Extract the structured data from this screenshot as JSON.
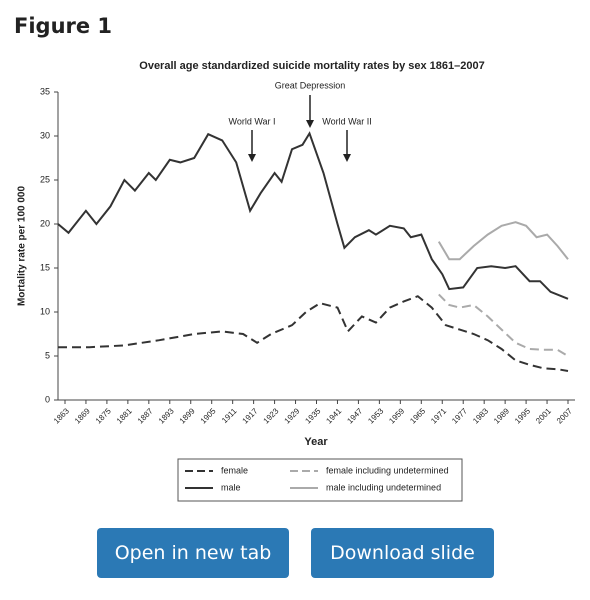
{
  "header": {
    "title": "Figure 1"
  },
  "chart_data": {
    "type": "line",
    "title": "Overall age standardized suicide mortality rates by sex 1861–2007",
    "x_label": "Year",
    "y_label": "Mortality rate per 100 000",
    "annotations": [
      "Great Depression",
      "World War I",
      "World War II"
    ],
    "xlim": [
      1861,
      2009
    ],
    "xticks": [
      1863,
      1869,
      1875,
      1881,
      1887,
      1893,
      1899,
      1905,
      1911,
      1917,
      1923,
      1929,
      1935,
      1941,
      1947,
      1953,
      1959,
      1965,
      1971,
      1977,
      1983,
      1989,
      1995,
      2001,
      2007
    ],
    "ylim": [
      0,
      35
    ],
    "yticks": [
      0,
      5,
      10,
      15,
      20,
      25,
      30,
      35
    ],
    "grid": false,
    "series": [
      {
        "name": "female",
        "color": "#333333",
        "dashed": true,
        "x": [
          1861,
          1870,
          1880,
          1890,
          1900,
          1908,
          1914,
          1918,
          1922,
          1928,
          1932,
          1936,
          1941,
          1944,
          1948,
          1952,
          1956,
          1960,
          1964,
          1968,
          1972,
          1976,
          1980,
          1984,
          1988,
          1992,
          1996,
          2000,
          2004,
          2007
        ],
        "values": [
          6,
          6,
          6.2,
          6.8,
          7.5,
          7.8,
          7.5,
          6.5,
          7.5,
          8.5,
          10,
          11,
          10.5,
          7.8,
          9.5,
          8.8,
          10.5,
          11.2,
          11.8,
          10.5,
          8.5,
          8,
          7.5,
          6.8,
          5.8,
          4.5,
          4,
          3.6,
          3.5,
          3.3
        ]
      },
      {
        "name": "female including undetermined",
        "color": "#aaaaaa",
        "dashed": true,
        "x": [
          1970,
          1973,
          1976,
          1980,
          1984,
          1988,
          1992,
          1996,
          2000,
          2004,
          2007
        ],
        "values": [
          12,
          10.8,
          10.5,
          10.8,
          9.5,
          8,
          6.5,
          5.8,
          5.7,
          5.7,
          5
        ]
      },
      {
        "name": "male",
        "color": "#333333",
        "dashed": false,
        "x": [
          1861,
          1864,
          1869,
          1872,
          1876,
          1880,
          1883,
          1887,
          1889,
          1893,
          1896,
          1900,
          1904,
          1908,
          1912,
          1916,
          1919,
          1923,
          1925,
          1928,
          1931,
          1933,
          1937,
          1941,
          1943,
          1946,
          1950,
          1952,
          1956,
          1960,
          1962,
          1965,
          1968,
          1971,
          1973,
          1977,
          1981,
          1985,
          1989,
          1992,
          1996,
          1999,
          2002,
          2007
        ],
        "values": [
          20,
          19,
          21.5,
          20,
          22,
          25,
          23.8,
          25.8,
          25,
          27.3,
          27,
          27.5,
          30.2,
          29.5,
          27,
          21.5,
          23.5,
          25.8,
          24.8,
          28.5,
          29,
          30.3,
          25.8,
          20,
          17.3,
          18.5,
          19.3,
          18.8,
          19.8,
          19.5,
          18.5,
          18.8,
          16,
          14.3,
          12.6,
          12.8,
          15,
          15.2,
          15,
          15.2,
          13.5,
          13.5,
          12.3,
          11.5
        ]
      },
      {
        "name": "male including undetermined",
        "color": "#aaaaaa",
        "dashed": false,
        "x": [
          1970,
          1973,
          1976,
          1980,
          1984,
          1988,
          1992,
          1995,
          1998,
          2001,
          2004,
          2007
        ],
        "values": [
          18,
          16,
          16,
          17.5,
          18.8,
          19.8,
          20.2,
          19.8,
          18.5,
          18.8,
          17.5,
          16
        ]
      }
    ]
  },
  "buttons": [
    "Open in new tab",
    "Download slide"
  ]
}
